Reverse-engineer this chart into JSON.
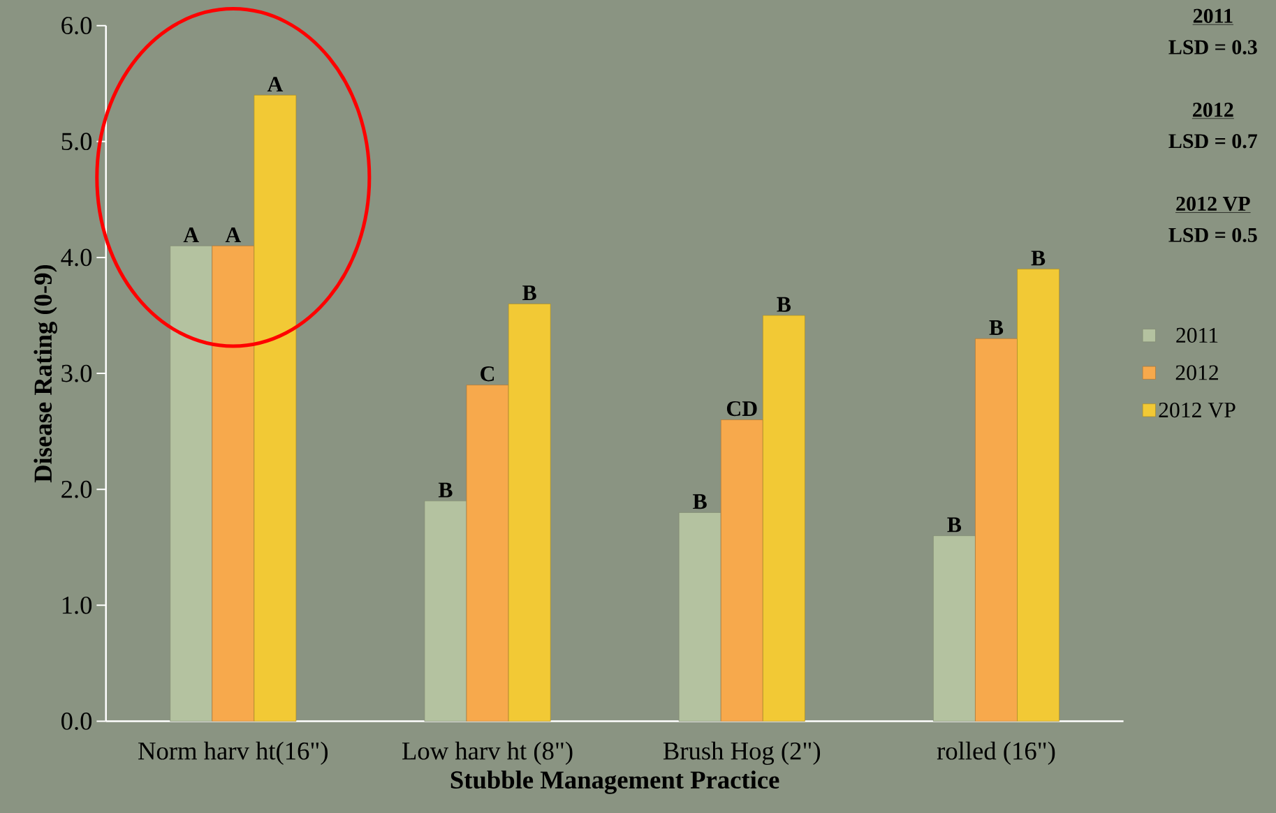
{
  "chart_data": {
    "type": "bar",
    "xlabel": "Stubble Management Practice",
    "ylabel": "Disease Rating (0-9)",
    "categories": [
      "Norm harv ht(16\")",
      "Low harv ht (8\")",
      "Brush Hog (2\")",
      "rolled (16\")"
    ],
    "series": [
      {
        "name": "2011",
        "color": "#b4c2a0",
        "values": [
          4.1,
          1.9,
          1.8,
          1.6
        ],
        "value_labels": [
          "A",
          "B",
          "B",
          "B"
        ]
      },
      {
        "name": "2012",
        "color": "#f7a94c",
        "values": [
          4.1,
          2.9,
          2.6,
          3.3
        ],
        "value_labels": [
          "A",
          "C",
          "CD",
          "B"
        ]
      },
      {
        "name": "2012 VP",
        "color": "#f2c935",
        "values": [
          5.4,
          3.6,
          3.5,
          3.9
        ],
        "value_labels": [
          "A",
          "B",
          "B",
          "B"
        ]
      }
    ],
    "ylim": [
      0,
      6
    ],
    "yticks": [
      {
        "value": 0,
        "label": "0.0"
      },
      {
        "value": 1,
        "label": "1.0"
      },
      {
        "value": 2,
        "label": "2.0"
      },
      {
        "value": 3,
        "label": "3.0"
      },
      {
        "value": 4,
        "label": "4.0"
      },
      {
        "value": 5,
        "label": "5.0"
      },
      {
        "value": 6,
        "label": "6.0"
      }
    ],
    "annotations": [
      "2011",
      "LSD = 0.3",
      "2012",
      "LSD = 0.7",
      "2012 VP",
      "LSD = 0.5"
    ],
    "legend": "right",
    "grid": false
  }
}
